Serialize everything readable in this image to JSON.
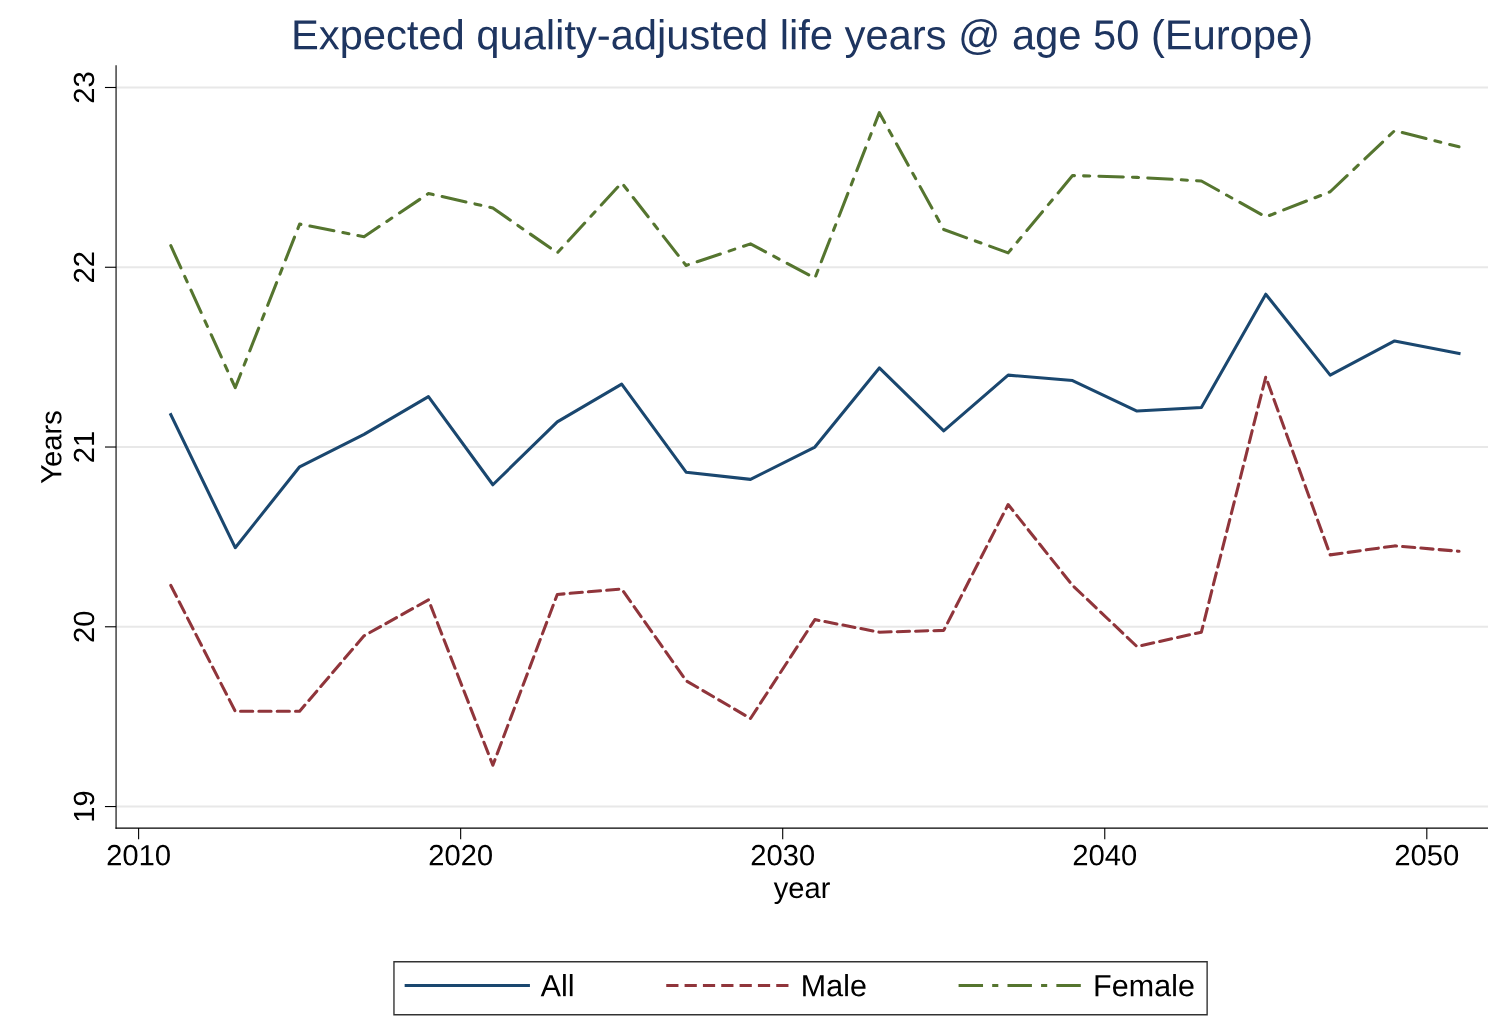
{
  "chart_data": {
    "type": "line",
    "title": "Expected quality-adjusted life years @ age 50 (Europe)",
    "xlabel": "year",
    "ylabel": "Years",
    "x": [
      2011,
      2013,
      2015,
      2017,
      2019,
      2021,
      2023,
      2025,
      2027,
      2029,
      2031,
      2033,
      2035,
      2037,
      2039,
      2041,
      2043,
      2045,
      2047,
      2049,
      2051
    ],
    "series": [
      {
        "name": "All",
        "color": "#1a476f",
        "line_style": "solid",
        "values": [
          21.18,
          20.44,
          20.89,
          21.07,
          21.28,
          20.79,
          21.14,
          21.35,
          20.86,
          20.82,
          21.0,
          21.44,
          21.09,
          21.4,
          21.37,
          21.2,
          21.22,
          21.85,
          21.4,
          21.59,
          21.52
        ]
      },
      {
        "name": "Male",
        "color": "#90353b",
        "line_style": "dashed",
        "values": [
          20.23,
          19.53,
          19.53,
          19.95,
          20.15,
          19.23,
          20.18,
          20.21,
          19.7,
          19.49,
          20.04,
          19.97,
          19.98,
          20.68,
          20.23,
          19.89,
          19.97,
          21.39,
          20.4,
          20.45,
          20.42
        ]
      },
      {
        "name": "Female",
        "color": "#55752f",
        "line_style": "dashdot",
        "values": [
          22.12,
          21.33,
          22.24,
          22.17,
          22.41,
          22.33,
          22.08,
          22.47,
          22.01,
          22.13,
          21.94,
          22.86,
          22.21,
          22.08,
          22.51,
          22.5,
          22.48,
          22.28,
          22.42,
          22.76,
          22.67
        ]
      }
    ],
    "xlim": [
      2009.3,
      2051.9
    ],
    "ylim": [
      18.88,
      23.12
    ],
    "xticks": [
      2010,
      2020,
      2030,
      2040,
      2050
    ],
    "yticks": [
      19,
      20,
      21,
      22,
      23
    ],
    "grid": "y",
    "legend": "bottom",
    "marker": "none"
  }
}
